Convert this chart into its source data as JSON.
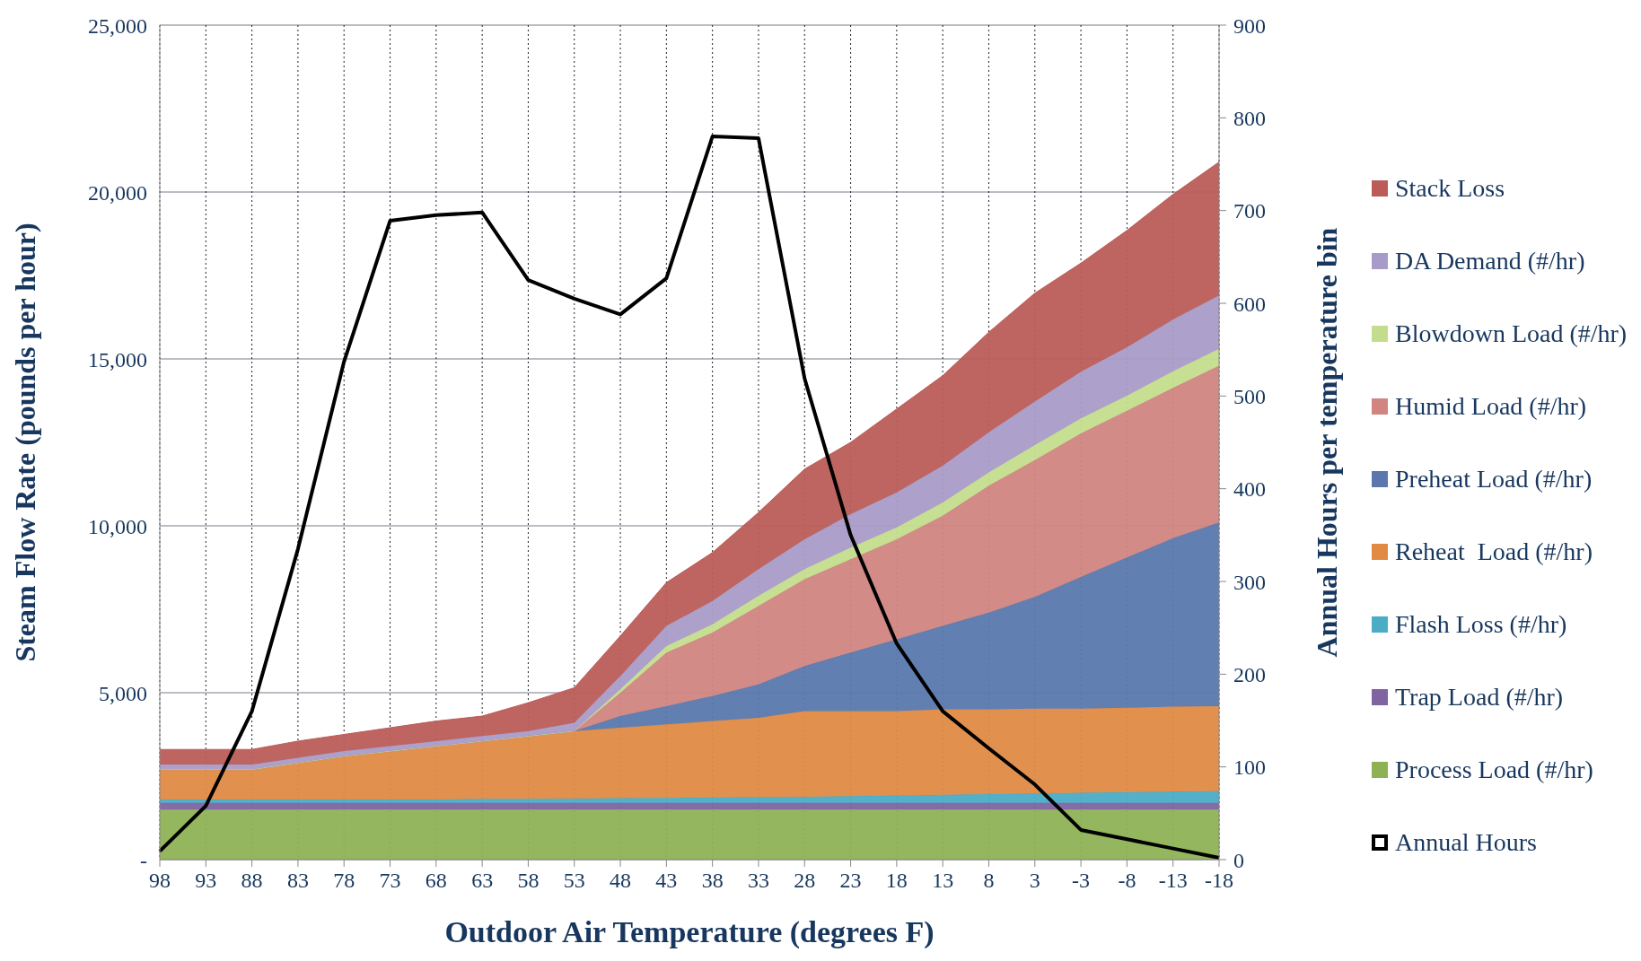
{
  "chart_data": {
    "type": "area",
    "stacked": true,
    "xlabel": "Outdoor Air Temperature (degrees F)",
    "ylabel": "Steam Flow Rate (pounds per hour)",
    "y2label": "Annual Hours per temperature bin",
    "categories": [
      "98",
      "93",
      "88",
      "83",
      "78",
      "73",
      "68",
      "63",
      "58",
      "53",
      "48",
      "43",
      "38",
      "33",
      "28",
      "23",
      "18",
      "13",
      "8",
      "3",
      "-3",
      "-8",
      "-13",
      "-18"
    ],
    "ylim": [
      0,
      25000
    ],
    "yticks": [
      {
        "value": 0,
        "label": "-"
      },
      {
        "value": 5000,
        "label": "5,000"
      },
      {
        "value": 10000,
        "label": "10,000"
      },
      {
        "value": 15000,
        "label": "15,000"
      },
      {
        "value": 20000,
        "label": "20,000"
      },
      {
        "value": 25000,
        "label": "25,000"
      }
    ],
    "y2lim": [
      0,
      900
    ],
    "y2ticks": [
      0,
      100,
      200,
      300,
      400,
      500,
      600,
      700,
      800,
      900
    ],
    "grid": true,
    "legend": "right",
    "marker": "none",
    "series": [
      {
        "name": "Process Load (#/hr)",
        "color": "#8db255",
        "values": [
          1500,
          1500,
          1500,
          1500,
          1500,
          1500,
          1500,
          1500,
          1500,
          1500,
          1500,
          1500,
          1500,
          1500,
          1500,
          1500,
          1500,
          1500,
          1500,
          1500,
          1500,
          1500,
          1500,
          1500
        ]
      },
      {
        "name": "Trap Load (#/hr)",
        "color": "#8064a2",
        "values": [
          200,
          200,
          200,
          200,
          200,
          200,
          200,
          200,
          200,
          200,
          200,
          200,
          200,
          200,
          200,
          200,
          200,
          200,
          200,
          200,
          200,
          200,
          200,
          200
        ]
      },
      {
        "name": "Flash Loss (#/hr)",
        "color": "#4bacc6",
        "values": [
          100,
          100,
          100,
          100,
          100,
          100,
          100,
          120,
          120,
          130,
          140,
          150,
          160,
          170,
          180,
          200,
          220,
          240,
          260,
          280,
          300,
          320,
          340,
          350
        ]
      },
      {
        "name": "Reheat  Load (#/hr)",
        "color": "#e08a44",
        "values": [
          900,
          900,
          900,
          1100,
          1300,
          1450,
          1600,
          1730,
          1880,
          2020,
          2110,
          2200,
          2290,
          2380,
          2570,
          2550,
          2530,
          2560,
          2540,
          2540,
          2520,
          2530,
          2540,
          2550
        ]
      },
      {
        "name": "Preheat Load (#/hr)",
        "color": "#5a78ae",
        "values": [
          0,
          0,
          0,
          0,
          0,
          0,
          0,
          0,
          0,
          0,
          350,
          550,
          750,
          1000,
          1350,
          1750,
          2150,
          2500,
          2900,
          3350,
          3950,
          4500,
          5050,
          5500
        ]
      },
      {
        "name": "Humid Load (#/hr)",
        "color": "#d08581",
        "values": [
          0,
          0,
          0,
          0,
          0,
          0,
          0,
          0,
          0,
          0,
          700,
          1600,
          1900,
          2350,
          2600,
          2800,
          3000,
          3300,
          3800,
          4100,
          4300,
          4400,
          4500,
          4700
        ]
      },
      {
        "name": "Blowdown Load (#/hr)",
        "color": "#c4dd8c",
        "values": [
          0,
          0,
          0,
          0,
          0,
          0,
          0,
          0,
          0,
          0,
          100,
          200,
          250,
          300,
          300,
          350,
          350,
          400,
          400,
          450,
          450,
          450,
          500,
          500
        ]
      },
      {
        "name": "DA Demand (#/hr)",
        "color": "#a99bc7",
        "values": [
          150,
          150,
          150,
          150,
          150,
          150,
          150,
          150,
          150,
          250,
          400,
          600,
          700,
          800,
          900,
          1000,
          1050,
          1100,
          1200,
          1300,
          1400,
          1450,
          1550,
          1600
        ]
      },
      {
        "name": "Stack Loss",
        "color": "#bb5c59",
        "values": [
          450,
          450,
          450,
          500,
          500,
          550,
          600,
          600,
          850,
          1050,
          1200,
          1300,
          1450,
          1700,
          2100,
          2150,
          2500,
          2700,
          3000,
          3250,
          3250,
          3500,
          3750,
          4000
        ]
      },
      {
        "name": "Annual Hours",
        "type": "line",
        "axis": "y2",
        "color": "#000000",
        "values": [
          9,
          58,
          160,
          335,
          537,
          689,
          695,
          698,
          625,
          605,
          588,
          627,
          780,
          778,
          519,
          350,
          233,
          160,
          120,
          81,
          32,
          22,
          12,
          2
        ]
      }
    ]
  }
}
